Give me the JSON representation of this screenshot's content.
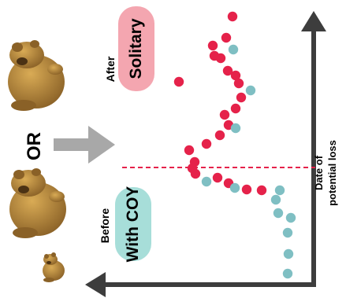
{
  "labels": {
    "after": "After",
    "solitary": "Solitary",
    "or": "OR",
    "before": "Before",
    "with_coy": "With COY",
    "date_line1": "Date of",
    "date_line2": "potential loss"
  },
  "colors": {
    "red_dot": "#e5224a",
    "teal_dot": "#7fbfc3",
    "solitary_pill": "#f4a6b0",
    "coy_pill": "#a7ded9",
    "axis": "#3d3d3d",
    "arrow": "#a8a8a8",
    "threshold_line": "#e5224a",
    "bear": "#b98a3a",
    "bear_shadow": "#8a6127"
  },
  "icons": [
    "adult-bear-icon",
    "adult-bear-icon",
    "cub-bear-icon",
    "right-arrow-icon"
  ]
}
